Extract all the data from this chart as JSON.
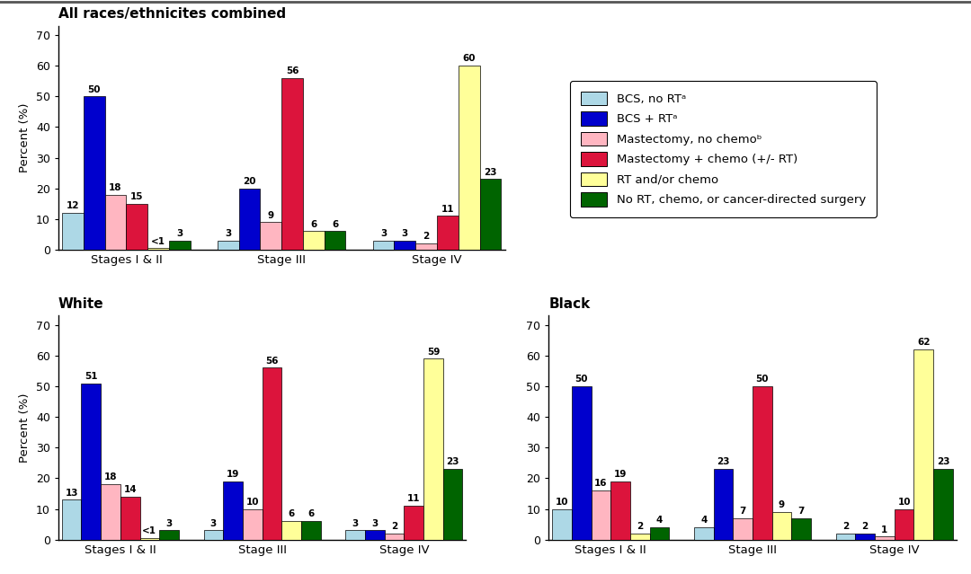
{
  "title_top": "All races/ethnicites combined",
  "subtitle_white": "White",
  "subtitle_black": "Black",
  "ylabel": "Percent (%)",
  "yticks": [
    0,
    10,
    20,
    30,
    40,
    50,
    60,
    70
  ],
  "ylim": [
    0,
    73
  ],
  "bar_width": 0.11,
  "colors": {
    "bcs_no_rt": "#add8e6",
    "bcs_rt": "#0000cd",
    "mast_no_chemo": "#ffb6c1",
    "mast_chemo": "#dc143c",
    "rt_chemo": "#ffff99",
    "no_treatment": "#006400"
  },
  "legend_labels": [
    "BCS, no RTᵃ",
    "BCS + RTᵃ",
    "Mastectomy, no chemoᵇ",
    "Mastectomy + chemo (+/- RT)",
    "RT and/or chemo",
    "No RT, chemo, or cancer-directed surgery"
  ],
  "stages": [
    "Stages I & II",
    "Stage III",
    "Stage IV"
  ],
  "all_combined": {
    "stages_I_II": [
      12,
      50,
      18,
      15,
      "<1",
      3
    ],
    "stage_III": [
      3,
      20,
      9,
      56,
      6,
      6
    ],
    "stage_IV": [
      3,
      3,
      2,
      11,
      60,
      23
    ]
  },
  "white": {
    "stages_I_II": [
      13,
      51,
      18,
      14,
      "<1",
      3
    ],
    "stage_III": [
      3,
      19,
      10,
      56,
      6,
      6
    ],
    "stage_IV": [
      3,
      3,
      2,
      11,
      59,
      23
    ]
  },
  "black": {
    "stages_I_II": [
      10,
      50,
      16,
      19,
      2,
      4
    ],
    "stage_III": [
      4,
      23,
      7,
      50,
      9,
      7
    ],
    "stage_IV": [
      2,
      2,
      1,
      10,
      62,
      23
    ]
  }
}
